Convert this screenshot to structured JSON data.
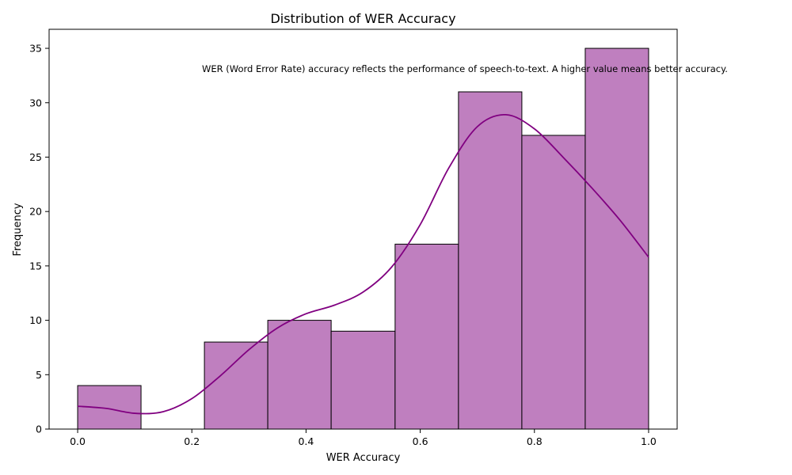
{
  "chart_data": {
    "type": "bar",
    "subtype": "histogram-with-kde",
    "title": "Distribution of WER Accuracy",
    "xlabel": "WER Accuracy",
    "ylabel": "Frequency",
    "annotation": "WER (Word Error Rate) accuracy reflects the performance of speech-to-text. A higher value means better accuracy.",
    "xlim": [
      -0.05,
      1.05
    ],
    "ylim": [
      0,
      36.75
    ],
    "x_ticks": [
      0.0,
      0.2,
      0.4,
      0.6,
      0.8,
      1.0
    ],
    "x_tick_labels": [
      "0.0",
      "0.2",
      "0.4",
      "0.6",
      "0.8",
      "1.0"
    ],
    "y_ticks": [
      0,
      5,
      10,
      15,
      20,
      25,
      30,
      35
    ],
    "y_tick_labels": [
      "0",
      "5",
      "10",
      "15",
      "20",
      "25",
      "30",
      "35"
    ],
    "bins": [
      {
        "start": 0.0,
        "end": 0.111,
        "count": 4
      },
      {
        "start": 0.111,
        "end": 0.222,
        "count": 0
      },
      {
        "start": 0.222,
        "end": 0.333,
        "count": 8
      },
      {
        "start": 0.333,
        "end": 0.444,
        "count": 10
      },
      {
        "start": 0.444,
        "end": 0.556,
        "count": 9
      },
      {
        "start": 0.556,
        "end": 0.667,
        "count": 17
      },
      {
        "start": 0.667,
        "end": 0.778,
        "count": 31
      },
      {
        "start": 0.778,
        "end": 0.889,
        "count": 27
      },
      {
        "start": 0.889,
        "end": 1.0,
        "count": 35
      }
    ],
    "kde": {
      "x": [
        0.0,
        0.05,
        0.1,
        0.15,
        0.2,
        0.25,
        0.3,
        0.35,
        0.4,
        0.45,
        0.5,
        0.55,
        0.6,
        0.65,
        0.7,
        0.75,
        0.8,
        0.85,
        0.9,
        0.95,
        1.0
      ],
      "y": [
        2.1,
        1.9,
        1.45,
        1.6,
        2.8,
        4.9,
        7.3,
        9.3,
        10.6,
        11.4,
        12.6,
        14.9,
        18.8,
        24.0,
        27.8,
        28.9,
        27.6,
        25.0,
        22.2,
        19.2,
        15.8
      ]
    },
    "bar_color": "#bf7fbf",
    "bar_edge_color": "#000000",
    "kde_color": "#800080",
    "grid": false,
    "legend": "none"
  }
}
